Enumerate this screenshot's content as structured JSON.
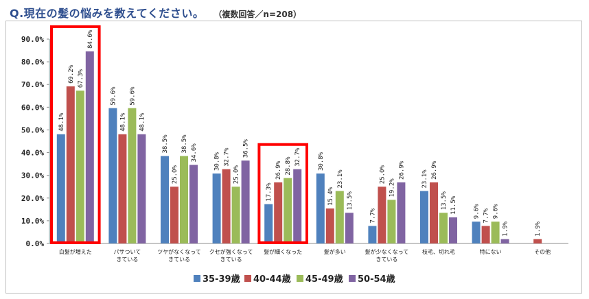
{
  "header": {
    "title": "Q.現在の髪の悩みを教えてください。",
    "subtitle": "（複数回答／n=208）"
  },
  "chart_data": {
    "type": "bar",
    "title": "Q.現在の髪の悩みを教えてください。",
    "subtitle": "（複数回答／n=208）",
    "xlabel": "",
    "ylabel": "",
    "ylim": [
      0,
      90
    ],
    "yticks": [
      "0.0%",
      "10.0%",
      "20.0%",
      "30.0%",
      "40.0%",
      "50.0%",
      "60.0%",
      "70.0%",
      "80.0%",
      "90.0%"
    ],
    "grid": false,
    "legend_position": "bottom",
    "categories": [
      [
        "白髪が増えた"
      ],
      [
        "パサついて",
        "きている"
      ],
      [
        "ツヤがなくなって",
        "きている"
      ],
      [
        "クセが強くなって",
        "きている"
      ],
      [
        "髪が細くなった"
      ],
      [
        "髪が多い"
      ],
      [
        "髪が少なくなって",
        "きている"
      ],
      [
        "枝毛、切れ毛"
      ],
      [
        "特にない"
      ],
      [
        "その他"
      ]
    ],
    "series": [
      {
        "name": "35-39歳",
        "color": "#4f81bd",
        "values": [
          48.1,
          59.6,
          38.5,
          30.8,
          17.3,
          30.8,
          7.7,
          23.1,
          9.6,
          null
        ],
        "labels": [
          "48.1%",
          "59.6%",
          "38.5%",
          "30.8%",
          "17.3%",
          "30.8%",
          "7.7%",
          "23.1%",
          "9.6%",
          ""
        ]
      },
      {
        "name": "40-44歳",
        "color": "#c0504d",
        "values": [
          69.2,
          48.1,
          25.0,
          32.7,
          26.9,
          15.4,
          25.0,
          26.9,
          7.7,
          1.9
        ],
        "labels": [
          "69.2%",
          "48.1%",
          "25.0%",
          "32.7%",
          "26.9%",
          "15.4%",
          "25.0%",
          "26.9%",
          "7.7%",
          "1.9%"
        ]
      },
      {
        "name": "45-49歳",
        "color": "#9bbb59",
        "values": [
          67.3,
          59.6,
          38.5,
          25.0,
          28.8,
          23.1,
          19.2,
          13.5,
          9.6,
          null
        ],
        "labels": [
          "67.3%",
          "59.6%",
          "38.5%",
          "25.0%",
          "28.8%",
          "23.1%",
          "19.2%",
          "13.5%",
          "9.6%",
          ""
        ]
      },
      {
        "name": "50-54歳",
        "color": "#8064a2",
        "values": [
          84.6,
          48.1,
          34.6,
          36.5,
          32.7,
          13.5,
          26.9,
          11.5,
          1.9,
          null
        ],
        "labels": [
          "84.6%",
          "48.1%",
          "34.6%",
          "36.5%",
          "32.7%",
          "13.5%",
          "26.9%",
          "11.5%",
          "1.9%",
          ""
        ]
      }
    ],
    "highlighted_categories": [
      "白髪が増えた",
      "髪が細くなった"
    ],
    "highlight_color": "#ff0000"
  }
}
